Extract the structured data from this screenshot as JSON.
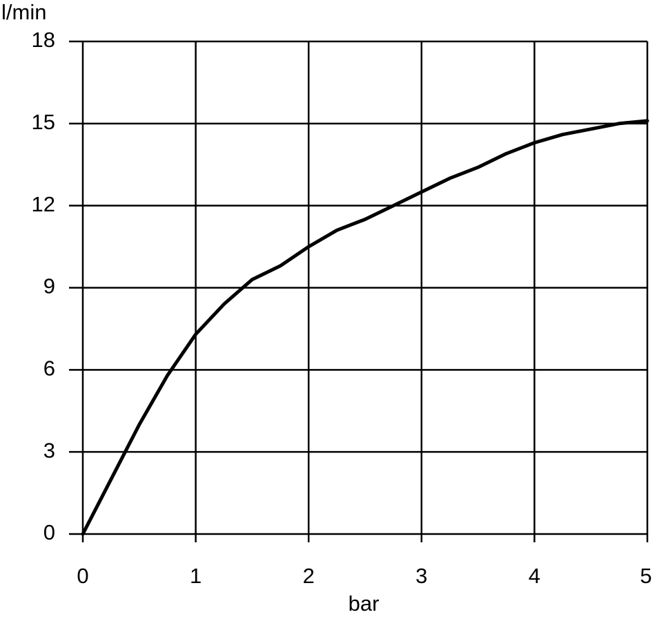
{
  "chart_data": {
    "type": "line",
    "y_label": "l/min",
    "x_label": "bar",
    "x": [
      0,
      0.25,
      0.5,
      0.75,
      1,
      1.25,
      1.5,
      1.75,
      2,
      2.25,
      2.5,
      2.75,
      3,
      3.25,
      3.5,
      3.75,
      4,
      4.25,
      4.5,
      4.75,
      5
    ],
    "values": [
      0,
      2,
      4,
      5.8,
      7.3,
      8.4,
      9.3,
      9.8,
      10.5,
      11.1,
      11.5,
      12.0,
      12.5,
      13.0,
      13.4,
      13.9,
      14.3,
      14.6,
      14.8,
      15.0,
      15.1
    ],
    "color": "#000000",
    "xlim": [
      0,
      5
    ],
    "xticks": [
      0,
      1,
      2,
      3,
      4,
      5
    ],
    "ylim": [
      0,
      18
    ],
    "yticks": [
      0,
      3,
      6,
      9,
      12,
      15,
      18
    ],
    "grid": true
  }
}
